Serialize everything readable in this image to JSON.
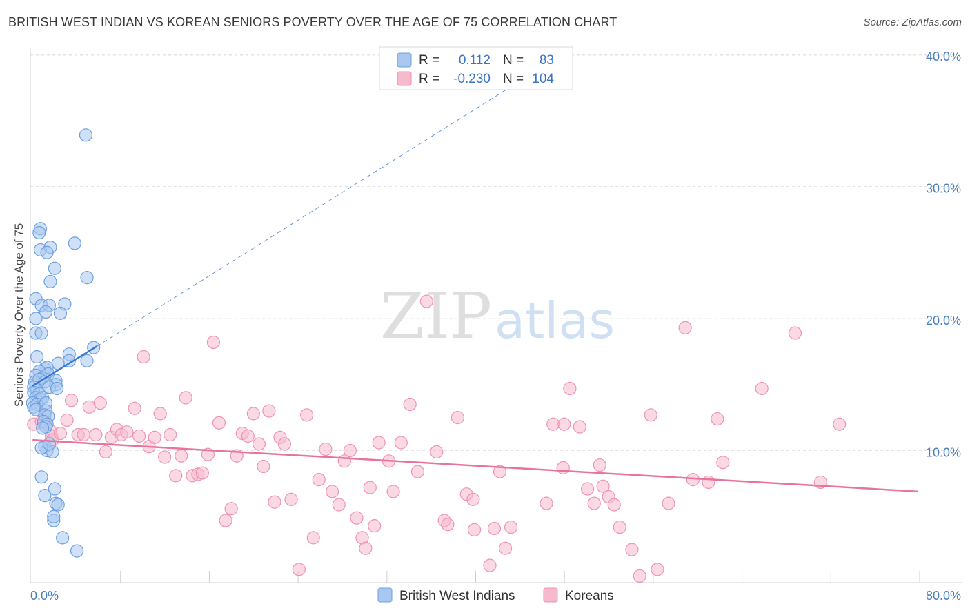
{
  "title": "BRITISH WEST INDIAN VS KOREAN SENIORS POVERTY OVER THE AGE OF 75 CORRELATION CHART",
  "source": "Source: ZipAtlas.com",
  "watermark": {
    "zip": "ZIP",
    "atlas": "atlas"
  },
  "chart_data": {
    "type": "scatter",
    "xlabel": "",
    "ylabel": "Seniors Poverty Over the Age of 75",
    "xlim": [
      0,
      80
    ],
    "ylim": [
      0,
      41.5
    ],
    "x_tick_labels": [
      "0.0%",
      "80.0%"
    ],
    "y_ticks": [
      {
        "value": 10,
        "label": "10.0%"
      },
      {
        "value": 20,
        "label": "20.0%"
      },
      {
        "value": 30,
        "label": "30.0%"
      },
      {
        "value": 40,
        "label": "40.0%"
      }
    ],
    "colors": {
      "bwi_fill": "#a9c8f0",
      "bwi_stroke": "#6b9fe0",
      "bwi_line": "#3a78d4",
      "kor_fill": "#f7b9cd",
      "kor_stroke": "#ee93b0",
      "kor_line": "#e8739b"
    },
    "legend": {
      "rows": [
        {
          "r_label": "R =",
          "r_value": "0.112",
          "n_label": "N =",
          "n_value": "83"
        },
        {
          "r_label": "R =",
          "r_value": "-0.230",
          "n_label": "N =",
          "n_value": "104"
        }
      ],
      "bottom": [
        "British West Indians",
        "Koreans"
      ]
    },
    "series": [
      {
        "name": "British West Indians",
        "trend": {
          "solid": [
            [
              0.2,
              14.9
            ],
            [
              6.0,
              17.9
            ]
          ],
          "dashed": [
            [
              6.0,
              17.9
            ],
            [
              48.5,
              40.3
            ]
          ]
        },
        "points": [
          [
            5.0,
            33.9
          ],
          [
            0.9,
            26.8
          ],
          [
            0.8,
            26.5
          ],
          [
            4.0,
            25.7
          ],
          [
            0.9,
            25.2
          ],
          [
            1.8,
            25.4
          ],
          [
            1.5,
            25.0
          ],
          [
            2.2,
            23.8
          ],
          [
            5.1,
            23.1
          ],
          [
            1.8,
            22.8
          ],
          [
            0.5,
            21.5
          ],
          [
            1.0,
            21.0
          ],
          [
            1.7,
            21.0
          ],
          [
            3.1,
            21.1
          ],
          [
            1.4,
            20.5
          ],
          [
            2.7,
            20.4
          ],
          [
            0.5,
            20.0
          ],
          [
            0.5,
            18.9
          ],
          [
            1.0,
            18.9
          ],
          [
            5.7,
            17.8
          ],
          [
            3.5,
            17.3
          ],
          [
            0.6,
            17.1
          ],
          [
            3.5,
            16.8
          ],
          [
            5.1,
            16.8
          ],
          [
            2.5,
            16.6
          ],
          [
            1.3,
            16.2
          ],
          [
            1.5,
            16.3
          ],
          [
            0.8,
            16.0
          ],
          [
            0.5,
            15.7
          ],
          [
            1.6,
            15.8
          ],
          [
            1.1,
            15.5
          ],
          [
            0.4,
            15.2
          ],
          [
            0.8,
            15.4
          ],
          [
            1.3,
            15.2
          ],
          [
            2.3,
            15.3
          ],
          [
            2.3,
            15.0
          ],
          [
            0.3,
            14.8
          ],
          [
            0.6,
            14.6
          ],
          [
            1.7,
            14.8
          ],
          [
            2.4,
            14.7
          ],
          [
            0.3,
            14.4
          ],
          [
            0.8,
            14.3
          ],
          [
            0.5,
            14.0
          ],
          [
            0.9,
            13.9
          ],
          [
            1.1,
            14.0
          ],
          [
            0.2,
            13.6
          ],
          [
            0.6,
            13.5
          ],
          [
            1.4,
            13.6
          ],
          [
            0.3,
            13.3
          ],
          [
            0.5,
            13.1
          ],
          [
            1.4,
            13.0
          ],
          [
            1.3,
            12.7
          ],
          [
            1.6,
            12.6
          ],
          [
            1.2,
            12.2
          ],
          [
            1.5,
            12.0
          ],
          [
            1.4,
            11.8
          ],
          [
            1.1,
            11.7
          ],
          [
            1.3,
            10.3
          ],
          [
            1.5,
            10.0
          ],
          [
            2.0,
            9.9
          ],
          [
            1.0,
            10.2
          ],
          [
            1.7,
            10.5
          ],
          [
            1.0,
            8.0
          ],
          [
            1.3,
            6.6
          ],
          [
            2.2,
            7.1
          ],
          [
            2.3,
            6.0
          ],
          [
            2.5,
            5.9
          ],
          [
            2.1,
            4.7
          ],
          [
            2.1,
            5.0
          ],
          [
            2.9,
            3.4
          ],
          [
            4.2,
            2.4
          ]
        ]
      },
      {
        "name": "Koreans",
        "trend": {
          "solid": [
            [
              0.2,
              10.8
            ],
            [
              80.0,
              6.9
            ]
          ]
        },
        "points": [
          [
            0.3,
            12.0
          ],
          [
            1.0,
            12.2
          ],
          [
            1.3,
            12.6
          ],
          [
            1.8,
            11.5
          ],
          [
            1.9,
            11.1
          ],
          [
            2.0,
            10.8
          ],
          [
            2.7,
            11.3
          ],
          [
            3.3,
            12.3
          ],
          [
            3.7,
            13.8
          ],
          [
            4.3,
            11.2
          ],
          [
            4.8,
            11.2
          ],
          [
            5.3,
            13.3
          ],
          [
            5.9,
            11.2
          ],
          [
            6.3,
            13.6
          ],
          [
            6.8,
            9.9
          ],
          [
            7.3,
            11.0
          ],
          [
            7.8,
            11.6
          ],
          [
            8.2,
            11.2
          ],
          [
            8.7,
            11.4
          ],
          [
            9.4,
            13.2
          ],
          [
            9.8,
            11.1
          ],
          [
            10.2,
            17.1
          ],
          [
            10.7,
            10.3
          ],
          [
            11.2,
            11.0
          ],
          [
            11.7,
            12.8
          ],
          [
            12.1,
            9.5
          ],
          [
            12.6,
            11.2
          ],
          [
            13.1,
            8.1
          ],
          [
            13.6,
            9.6
          ],
          [
            14.0,
            14.0
          ],
          [
            14.6,
            8.1
          ],
          [
            15.1,
            8.2
          ],
          [
            15.5,
            8.3
          ],
          [
            16.0,
            9.7
          ],
          [
            16.5,
            18.2
          ],
          [
            17.0,
            12.1
          ],
          [
            17.6,
            4.7
          ],
          [
            18.1,
            5.6
          ],
          [
            18.6,
            9.6
          ],
          [
            19.1,
            11.3
          ],
          [
            19.6,
            11.1
          ],
          [
            20.1,
            12.8
          ],
          [
            20.6,
            10.5
          ],
          [
            21.0,
            8.8
          ],
          [
            21.5,
            13.0
          ],
          [
            22.0,
            6.1
          ],
          [
            22.5,
            11.0
          ],
          [
            22.9,
            10.5
          ],
          [
            23.5,
            6.3
          ],
          [
            24.2,
            1.0
          ],
          [
            24.9,
            12.7
          ],
          [
            25.5,
            3.4
          ],
          [
            26.0,
            7.8
          ],
          [
            26.6,
            10.1
          ],
          [
            27.2,
            6.9
          ],
          [
            27.8,
            5.9
          ],
          [
            28.3,
            9.2
          ],
          [
            28.8,
            10.0
          ],
          [
            29.4,
            4.9
          ],
          [
            29.9,
            3.4
          ],
          [
            30.2,
            2.6
          ],
          [
            30.6,
            7.2
          ],
          [
            31.0,
            4.3
          ],
          [
            31.4,
            10.6
          ],
          [
            32.3,
            9.2
          ],
          [
            32.7,
            6.9
          ],
          [
            33.4,
            10.6
          ],
          [
            34.2,
            13.5
          ],
          [
            34.9,
            8.4
          ],
          [
            35.7,
            21.3
          ],
          [
            36.6,
            9.9
          ],
          [
            37.3,
            4.7
          ],
          [
            37.6,
            4.4
          ],
          [
            38.5,
            12.5
          ],
          [
            39.3,
            6.7
          ],
          [
            39.9,
            6.3
          ],
          [
            40.0,
            4.0
          ],
          [
            41.4,
            1.3
          ],
          [
            41.8,
            4.1
          ],
          [
            42.3,
            8.4
          ],
          [
            42.8,
            2.6
          ],
          [
            43.3,
            4.2
          ],
          [
            46.5,
            6.0
          ],
          [
            47.1,
            12.0
          ],
          [
            48.0,
            8.7
          ],
          [
            48.1,
            12.0
          ],
          [
            48.6,
            14.7
          ],
          [
            49.5,
            11.8
          ],
          [
            50.2,
            7.1
          ],
          [
            50.8,
            6.0
          ],
          [
            51.3,
            8.9
          ],
          [
            51.6,
            7.3
          ],
          [
            52.1,
            6.5
          ],
          [
            52.6,
            5.9
          ],
          [
            53.1,
            4.2
          ],
          [
            54.2,
            2.5
          ],
          [
            54.9,
            0.5
          ],
          [
            55.9,
            12.7
          ],
          [
            56.5,
            1.0
          ],
          [
            57.5,
            6.0
          ],
          [
            59.0,
            19.3
          ],
          [
            59.7,
            7.8
          ],
          [
            61.1,
            7.6
          ],
          [
            61.9,
            12.4
          ],
          [
            62.4,
            9.1
          ],
          [
            65.9,
            14.7
          ],
          [
            68.9,
            18.9
          ],
          [
            71.2,
            7.6
          ],
          [
            72.9,
            12.0
          ]
        ]
      }
    ]
  }
}
